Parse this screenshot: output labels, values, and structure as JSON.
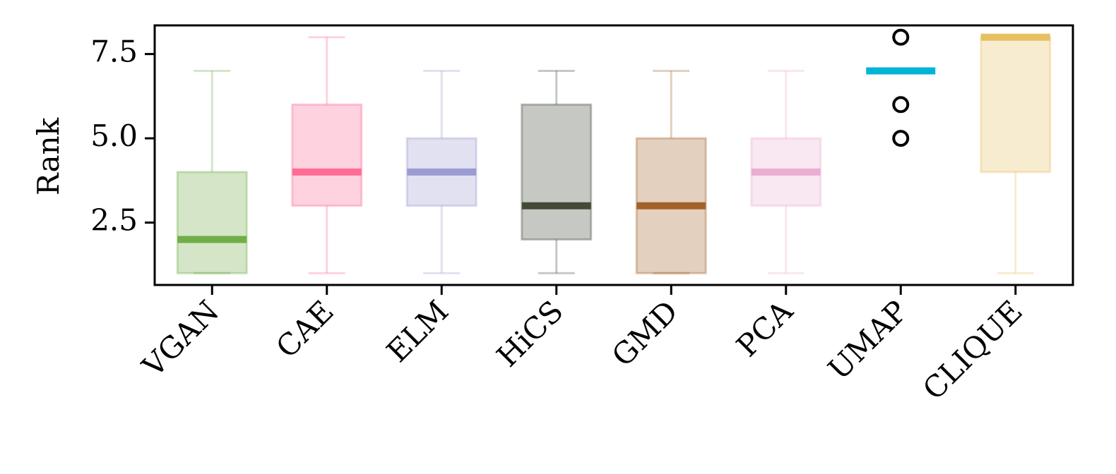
{
  "chart_data": {
    "type": "box",
    "title": "",
    "xlabel": "",
    "ylabel": "Rank",
    "ylim": [
      0.65,
      8.35
    ],
    "yticks": [
      2.5,
      5.0,
      7.5
    ],
    "ytick_labels": [
      "2.5",
      "5.0",
      "7.5"
    ],
    "grid": false,
    "categories": [
      "VGAN",
      "CAE",
      "ELM",
      "HiCS",
      "GMD",
      "PCA",
      "UMAP",
      "CLIQUE"
    ],
    "boxes": [
      {
        "name": "VGAN",
        "whislo": 1,
        "q1": 1,
        "median": 2,
        "q3": 4,
        "whishi": 7,
        "fliers": [],
        "color": "#70ad47"
      },
      {
        "name": "CAE",
        "whislo": 1,
        "q1": 3,
        "median": 4,
        "q3": 6,
        "whishi": 8,
        "fliers": [],
        "color": "#ff6b95"
      },
      {
        "name": "ELM",
        "whislo": 1,
        "q1": 3,
        "median": 4,
        "q3": 5,
        "whishi": 7,
        "fliers": [],
        "color": "#9c9cd2"
      },
      {
        "name": "HiCS",
        "whislo": 1,
        "q1": 2,
        "median": 3,
        "q3": 6,
        "whishi": 7,
        "fliers": [],
        "color": "#434a38"
      },
      {
        "name": "GMD",
        "whislo": 1,
        "q1": 1,
        "median": 3,
        "q3": 5,
        "whishi": 7,
        "fliers": [],
        "color": "#a3622a"
      },
      {
        "name": "PCA",
        "whislo": 1,
        "q1": 3,
        "median": 4,
        "q3": 5,
        "whishi": 7,
        "fliers": [],
        "color": "#eaaed2"
      },
      {
        "name": "UMAP",
        "whislo": 7,
        "q1": 7,
        "median": 7,
        "q3": 7,
        "whishi": 7,
        "fliers": [
          5,
          6,
          8
        ],
        "color": "#00b4d8"
      },
      {
        "name": "CLIQUE",
        "whislo": 1,
        "q1": 4,
        "median": 8,
        "q3": 8,
        "whishi": 8,
        "fliers": [],
        "color": "#e8c062"
      }
    ]
  }
}
